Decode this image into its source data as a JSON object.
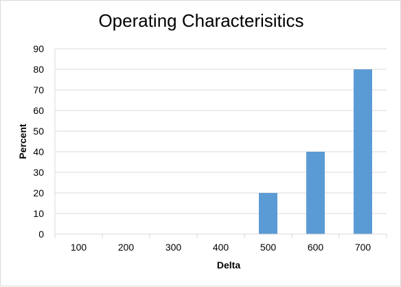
{
  "chart_data": {
    "type": "bar",
    "title": "Operating Characterisitics",
    "xlabel": "Delta",
    "ylabel": "Percent",
    "categories": [
      "100",
      "200",
      "300",
      "400",
      "500",
      "600",
      "700"
    ],
    "values": [
      0,
      0,
      0,
      0,
      20,
      40,
      80
    ],
    "ylim": [
      0,
      90
    ],
    "yticks": [
      0,
      10,
      20,
      30,
      40,
      50,
      60,
      70,
      80,
      90
    ],
    "grid": true,
    "legend": "none",
    "bar_color": "#5b9bd5",
    "grid_color": "#d9d9d9"
  }
}
